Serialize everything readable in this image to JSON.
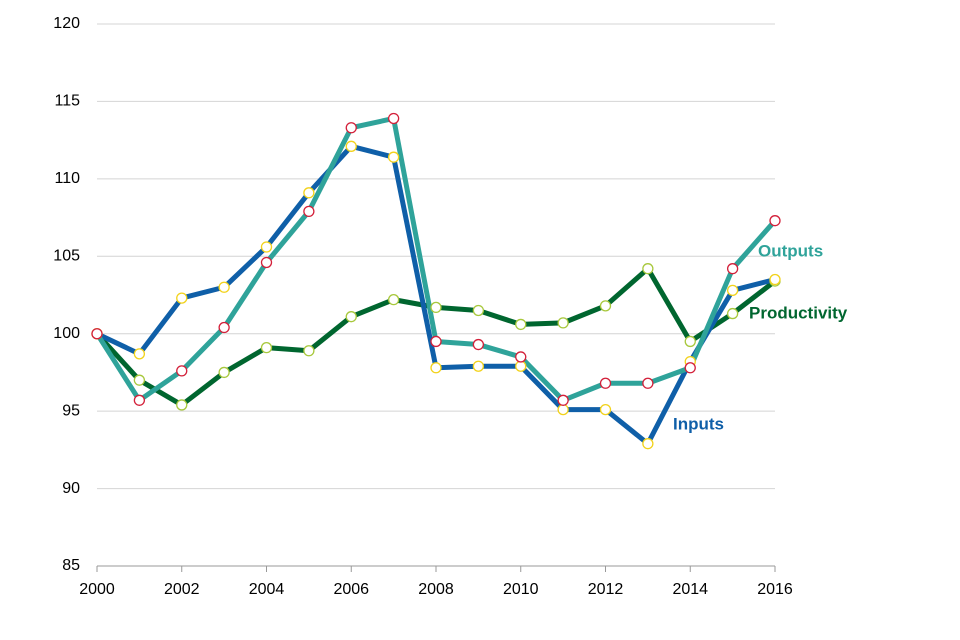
{
  "chart_data": {
    "type": "line",
    "x": [
      2000,
      2001,
      2002,
      2003,
      2004,
      2005,
      2006,
      2007,
      2008,
      2009,
      2010,
      2011,
      2012,
      2013,
      2014,
      2015,
      2016
    ],
    "series": [
      {
        "name": "Productivity",
        "color": "#00662f",
        "marker_color": "#a8c83c",
        "values": [
          100,
          97.0,
          95.4,
          97.5,
          99.1,
          98.9,
          101.1,
          102.2,
          101.7,
          101.5,
          100.6,
          100.7,
          101.8,
          104.2,
          99.5,
          101.3,
          103.4
        ]
      },
      {
        "name": "Inputs",
        "color": "#0f5fa8",
        "marker_color": "#f2d21b",
        "values": [
          100,
          98.7,
          102.3,
          103.0,
          105.6,
          109.1,
          112.1,
          111.4,
          97.8,
          97.9,
          97.9,
          95.1,
          95.1,
          92.9,
          98.2,
          102.8,
          103.5
        ]
      },
      {
        "name": "Outputs",
        "color": "#2fa39a",
        "marker_color": "#d3203a",
        "values": [
          100,
          95.7,
          97.6,
          100.4,
          104.6,
          107.9,
          113.3,
          113.9,
          99.5,
          99.3,
          98.5,
          95.7,
          96.8,
          96.8,
          97.8,
          104.2,
          107.3
        ]
      }
    ],
    "xlim": [
      2000,
      2016
    ],
    "xticks": [
      2000,
      2002,
      2004,
      2006,
      2008,
      2010,
      2012,
      2014,
      2016
    ],
    "ylim": [
      85,
      120
    ],
    "yticks": [
      85,
      90,
      95,
      100,
      105,
      110,
      115,
      120
    ],
    "grid": true
  }
}
